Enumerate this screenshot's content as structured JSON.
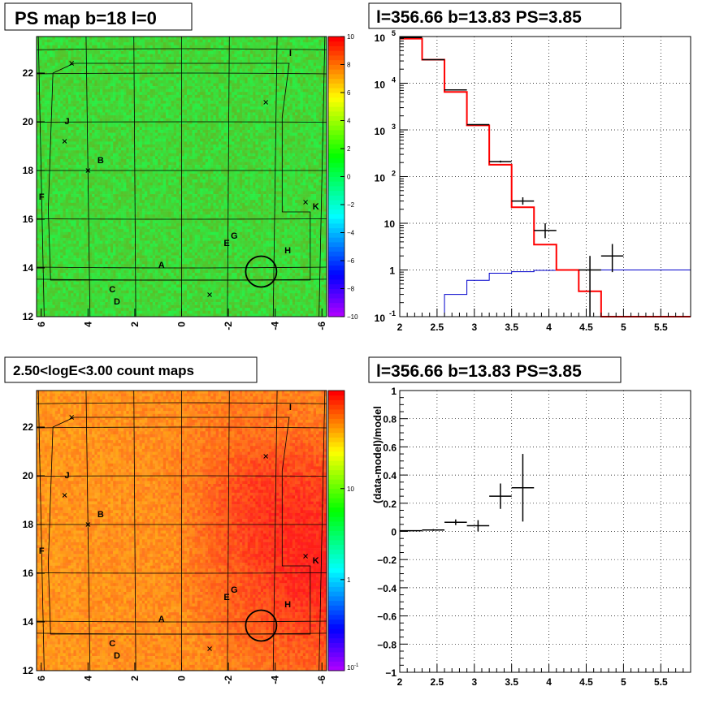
{
  "panels": {
    "ps_map": {
      "title": "PS map b=18 l=0",
      "xticks": [
        "6",
        "4",
        "2",
        "0",
        "-2",
        "-4",
        "-6"
      ],
      "yticks": [
        "12",
        "14",
        "16",
        "18",
        "20",
        "22"
      ],
      "xlim": [
        6.2,
        -6.2
      ],
      "ylim": [
        12,
        23.5
      ],
      "colorbar": {
        "ticks": [
          "10",
          "8",
          "6",
          "4",
          "2",
          "0",
          "−2",
          "−4",
          "−6",
          "−8",
          "−10"
        ],
        "range": [
          -10,
          10
        ],
        "scale": "linear"
      }
    },
    "count_map": {
      "title": "2.50<logE<3.00 count maps",
      "xticks": [
        "6",
        "4",
        "2",
        "0",
        "-2",
        "-4",
        "-6"
      ],
      "yticks": [
        "12",
        "14",
        "16",
        "18",
        "20",
        "22"
      ],
      "colorbar": {
        "ticks": [
          "10",
          "1"
        ],
        "bottom_label": "10",
        "bottom_exp": "-1",
        "scale": "log"
      }
    },
    "spectrum": {
      "title": "l=356.66 b=13.83 PS=3.85"
    },
    "residual": {
      "title": "l=356.66 b=13.83 PS=3.85",
      "ylabel": "(data-model)/model"
    }
  },
  "sources": [
    {
      "label": "A",
      "l": 1.0,
      "b": 14.0
    },
    {
      "label": "B",
      "l": 3.6,
      "b": 18.3
    },
    {
      "label": "C",
      "l": 3.1,
      "b": 13.0
    },
    {
      "label": "D",
      "l": 2.9,
      "b": 12.5
    },
    {
      "label": "E",
      "l": -1.8,
      "b": 14.9
    },
    {
      "label": "F",
      "l": 6.1,
      "b": 16.8
    },
    {
      "label": "G",
      "l": -2.1,
      "b": 15.2
    },
    {
      "label": "H",
      "l": -4.4,
      "b": 14.6
    },
    {
      "label": "I",
      "l": -4.6,
      "b": 22.7
    },
    {
      "label": "J",
      "l": 5.0,
      "b": 19.9
    },
    {
      "label": "K",
      "l": -5.6,
      "b": 16.4
    }
  ],
  "markers": [
    {
      "l": 5.0,
      "b": 19.2
    },
    {
      "l": 4.0,
      "b": 18.0
    },
    {
      "l": -3.6,
      "b": 20.8
    },
    {
      "l": -5.3,
      "b": 16.7
    },
    {
      "l": -1.2,
      "b": 12.9
    },
    {
      "l": 4.7,
      "b": 22.4
    }
  ],
  "circle": {
    "l": -3.4,
    "b": 13.85,
    "r": 0.55
  },
  "chart_data": [
    {
      "type": "step",
      "title": "l=356.66 b=13.83 PS=3.85",
      "xlim": [
        2.0,
        5.9
      ],
      "ylim": [
        0.1,
        100000
      ],
      "yscale": "log",
      "grid": true,
      "xticks": [
        "2",
        "2.5",
        "3",
        "3.5",
        "4",
        "4.5",
        "5",
        "5.5"
      ],
      "yticks": [
        {
          "base": "10",
          "exp": "5",
          "v": 100000
        },
        {
          "base": "10",
          "exp": "4",
          "v": 10000
        },
        {
          "base": "10",
          "exp": "3",
          "v": 1000
        },
        {
          "base": "10",
          "exp": "2",
          "v": 100
        },
        {
          "base": "10",
          "exp": "",
          "v": 10
        },
        {
          "base": "1",
          "exp": "",
          "v": 1
        },
        {
          "base": "10",
          "exp": "-1",
          "v": 0.1
        }
      ],
      "model_bins": {
        "edges": [
          2.0,
          2.3,
          2.6,
          2.9,
          3.2,
          3.5,
          3.8,
          4.1,
          4.4,
          4.7,
          5.9
        ],
        "values": [
          90000,
          32000,
          6500,
          1250,
          180,
          22,
          3.5,
          1.0,
          0.35,
          0.1
        ]
      },
      "background_bins": {
        "edges": [
          2.6,
          2.9,
          3.2,
          3.5,
          3.8,
          4.1,
          5.9
        ],
        "values": [
          0.3,
          0.6,
          0.85,
          0.92,
          0.98,
          1.0
        ]
      },
      "data_points": [
        {
          "x": 2.15,
          "y": 95000,
          "dx": 0.15,
          "ylo": 95000,
          "yhi": 95000
        },
        {
          "x": 2.45,
          "y": 32000,
          "dx": 0.15,
          "ylo": 32000,
          "yhi": 32000
        },
        {
          "x": 2.75,
          "y": 7200,
          "dx": 0.15,
          "ylo": 7200,
          "yhi": 7200
        },
        {
          "x": 3.05,
          "y": 1300,
          "dx": 0.15,
          "ylo": 1300,
          "yhi": 1300
        },
        {
          "x": 3.35,
          "y": 210,
          "dx": 0.15,
          "ylo": 200,
          "yhi": 220
        },
        {
          "x": 3.65,
          "y": 30,
          "dx": 0.15,
          "ylo": 25,
          "yhi": 36
        },
        {
          "x": 3.95,
          "y": 7,
          "dx": 0.15,
          "ylo": 4.8,
          "yhi": 10
        },
        {
          "x": 4.55,
          "y": 1,
          "dx": 0.15,
          "ylo": 0.1,
          "yhi": 2.0
        },
        {
          "x": 4.85,
          "y": 2,
          "dx": 0.15,
          "ylo": 0.9,
          "yhi": 3.6
        }
      ]
    },
    {
      "type": "scatter",
      "title": "l=356.66 b=13.83 PS=3.85",
      "ylabel": "(data-model)/model",
      "xlim": [
        2.0,
        5.9
      ],
      "ylim": [
        -1,
        1
      ],
      "grid": true,
      "xticks": [
        "2",
        "2.5",
        "3",
        "3.5",
        "4",
        "4.5",
        "5",
        "5.5"
      ],
      "yticks": [
        "1",
        "0.8",
        "0.6",
        "0.4",
        "0.2",
        "0",
        "−0.2",
        "−0.4",
        "−0.6",
        "−0.8",
        "−1"
      ],
      "points": [
        {
          "x": 2.15,
          "y": 0.005,
          "dx": 0.15,
          "ey": 0.003
        },
        {
          "x": 2.45,
          "y": 0.01,
          "dx": 0.15,
          "ey": 0.006
        },
        {
          "x": 2.75,
          "y": 0.065,
          "dx": 0.15,
          "ey": 0.02
        },
        {
          "x": 3.05,
          "y": 0.04,
          "dx": 0.15,
          "ey": 0.04
        },
        {
          "x": 3.35,
          "y": 0.25,
          "dx": 0.15,
          "ey": 0.09
        },
        {
          "x": 3.65,
          "y": 0.31,
          "dx": 0.15,
          "ey": 0.24
        }
      ]
    }
  ],
  "colors": {
    "model": "#ff0000",
    "background": "#0000cc",
    "data": "#000000",
    "ps_base": "#3de83d",
    "count_base": "#f5a623"
  }
}
